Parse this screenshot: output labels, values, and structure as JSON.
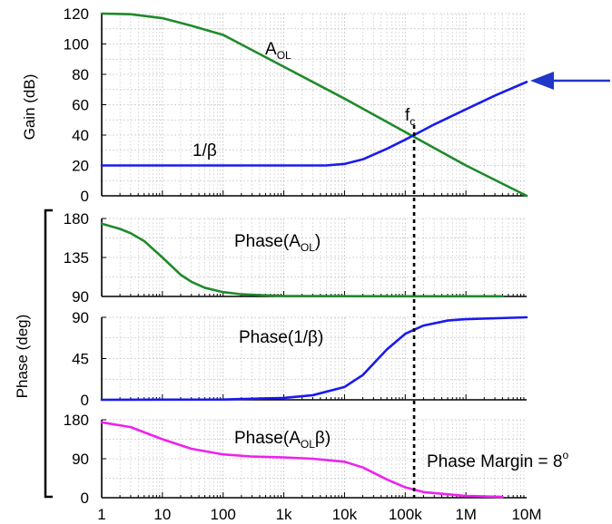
{
  "colors": {
    "green": "#1f8a2b",
    "blue": "#1a1aee",
    "magenta": "#ee22ee",
    "arrow": "#2236c8",
    "grid": "#c8c8c8"
  },
  "chart_data": {
    "type": "line",
    "x_scale": "log",
    "x_tick_labels": [
      "1",
      "10",
      "100",
      "1k",
      "10k",
      "100k",
      "1M",
      "10M"
    ],
    "x_tick_values": [
      1,
      10,
      100,
      1000,
      10000,
      100000,
      1000000,
      10000000
    ],
    "xlim": [
      1,
      10000000
    ],
    "grid": true,
    "crossover_frequency": 140000,
    "panels": [
      {
        "id": "gain",
        "ylabel": "Gain (dB)",
        "ylim": [
          0,
          120
        ],
        "y_ticks": [
          0,
          20,
          40,
          60,
          80,
          100,
          120
        ],
        "series": [
          {
            "label_main": "A",
            "label_sub": "OL",
            "color": "green",
            "x": [
              1,
              3,
              10,
              30,
              100,
              1000,
              10000,
              100000,
              1000000,
              10000000
            ],
            "y": [
              120,
              119.6,
              117,
              112,
              106,
              85,
              64,
              42,
              20,
              0
            ]
          },
          {
            "label_main": "1/β",
            "label_sub": "",
            "color": "blue",
            "x": [
              1,
              100,
              1000,
              5000,
              10000,
              20000,
              50000,
              100000,
              300000,
              1000000,
              3000000,
              10000000
            ],
            "y": [
              20,
              20,
              20,
              20,
              21,
              24,
              31,
              37,
              47,
              57,
              66,
              75
            ]
          }
        ],
        "annotations": [
          {
            "text": "f",
            "sub": "c"
          }
        ]
      },
      {
        "id": "phase_aol",
        "ylim": [
          90,
          180
        ],
        "y_ticks": [
          90,
          135,
          180
        ],
        "series": [
          {
            "label_main": "Phase(A",
            "label_sub": "OL",
            "label_end": ")",
            "color": "green",
            "x": [
              1,
              2,
              3,
              5,
              10,
              20,
              30,
              50,
              100,
              200,
              500,
              1000,
              10000,
              100000,
              1000000,
              4000000
            ],
            "y": [
              174,
              168,
              163,
              154,
              135,
              115,
              107,
              100,
              95,
              92.5,
              91.2,
              90.6,
              90.3,
              90.2,
              90.2,
              90.2
            ]
          }
        ]
      },
      {
        "id": "phase_beta",
        "ylabel": "Phase (deg)",
        "ylim": [
          0,
          90
        ],
        "y_ticks": [
          0,
          45,
          90
        ],
        "series": [
          {
            "label_main": "Phase(1/β)",
            "label_sub": "",
            "color": "blue",
            "x": [
              1,
              100,
              1000,
              3000,
              10000,
              20000,
              50000,
              100000,
              200000,
              500000,
              1000000,
              10000000
            ],
            "y": [
              0,
              0.3,
              2,
              5,
              14,
              27,
              55,
              72,
              81,
              86.5,
              88,
              90
            ]
          }
        ]
      },
      {
        "id": "phase_loop",
        "ylim": [
          0,
          180
        ],
        "y_ticks": [
          0,
          90,
          180
        ],
        "series": [
          {
            "label_main": "Phase(A",
            "label_sub": "OL",
            "label_end": "β)",
            "color": "magenta",
            "x": [
              1,
              3,
              10,
              30,
              100,
              300,
              1000,
              3000,
              10000,
              20000,
              50000,
              100000,
              200000,
              1000000,
              4000000
            ],
            "y": [
              174,
              163,
              135,
              113,
              100,
              95,
              93,
              90,
              83,
              70,
              42,
              24,
              13,
              4,
              2
            ]
          }
        ],
        "annotations": [
          {
            "text": "Phase Margin = 8",
            "sup": "o"
          }
        ]
      }
    ]
  }
}
